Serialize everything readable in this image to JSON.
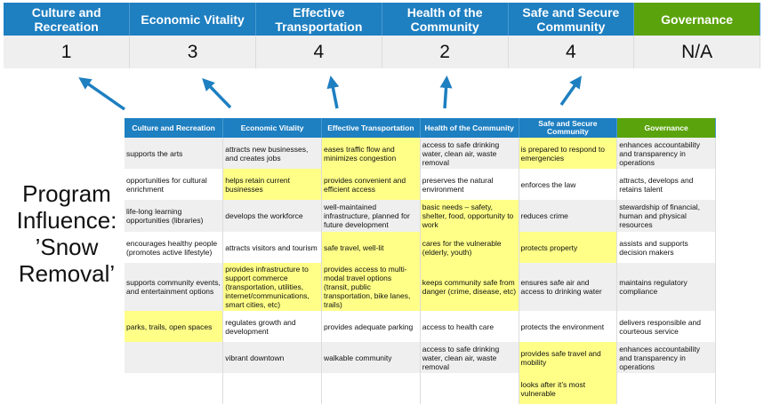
{
  "summary": {
    "headers": [
      "Culture and Recreation",
      "Economic Vitality",
      "Effective Transportation",
      "Health of the Community",
      "Safe and Secure Community",
      "Governance"
    ],
    "scores": [
      "1",
      "3",
      "4",
      "2",
      "4",
      "N/A"
    ]
  },
  "title": "Program Influence: ’Snow Removal’",
  "colors": {
    "header_blue": "#1e7fc1",
    "governance_green": "#5ba30c",
    "highlight": "#ffff88",
    "arrow": "#1e7fc1"
  },
  "detail": {
    "headers": [
      "Culture and Recreation",
      "Economic Vitality",
      "Effective Transportation",
      "Health of the Community",
      "Safe and Secure Community",
      "Governance"
    ],
    "rows": [
      {
        "cells": [
          "supports the arts",
          "attracts new businesses, and creates jobs",
          "eases traffic flow and minimizes congestion",
          "access to safe drinking water, clean air, waste removal",
          "is prepared to respond to emergencies",
          "enhances accountability and transparency in operations"
        ],
        "highlighted": [
          false,
          false,
          true,
          false,
          true,
          false
        ]
      },
      {
        "cells": [
          "opportunities for cultural enrichment",
          "helps retain current businesses",
          "provides convenient and efficient access",
          "preserves the natural environment",
          "enforces the law",
          "attracts, develops and retains talent"
        ],
        "highlighted": [
          false,
          true,
          true,
          false,
          false,
          false
        ]
      },
      {
        "cells": [
          "life-long learning opportunities (libraries)",
          "develops the workforce",
          "well-maintained infrastructure, planned for future development",
          "basic needs – safety, shelter, food, opportunity to work",
          "reduces crime",
          "stewardship of financial, human and physical resources"
        ],
        "highlighted": [
          false,
          false,
          false,
          true,
          false,
          false
        ]
      },
      {
        "cells": [
          "encourages healthy people (promotes active lifestyle)",
          "attracts visitors and tourism",
          "safe travel, well-lit",
          "cares for the vulnerable (elderly, youth)",
          "protects property",
          "assists and supports decision makers"
        ],
        "highlighted": [
          false,
          false,
          true,
          true,
          true,
          false
        ]
      },
      {
        "cells": [
          "supports community events, and entertainment options",
          "provides infrastructure to support commerce (transportation, utilities, internet/communications, smart cities, etc)",
          "provides access to multi-modal travel options (transit, public transportation, bike lanes, trails)",
          "keeps community safe from danger (crime, disease, etc)",
          "ensures safe air and access to drinking water",
          "maintains regulatory compliance"
        ],
        "highlighted": [
          false,
          true,
          true,
          true,
          false,
          false
        ]
      },
      {
        "cells": [
          "parks, trails, open spaces",
          "regulates growth and development",
          "provides adequate parking",
          "access to health care",
          "protects the environment",
          "delivers responsible and courteous service"
        ],
        "highlighted": [
          true,
          false,
          false,
          false,
          false,
          false
        ]
      },
      {
        "cells": [
          "",
          "vibrant downtown",
          "walkable community",
          "access to safe drinking water, clean air, waste removal",
          "provides safe travel and mobility",
          "enhances accountability and transparency in operations"
        ],
        "highlighted": [
          false,
          false,
          false,
          false,
          true,
          false
        ]
      },
      {
        "cells": [
          "",
          "",
          "",
          "",
          "looks after it’s most vulnerable",
          ""
        ],
        "highlighted": [
          false,
          false,
          false,
          false,
          true,
          false
        ]
      }
    ]
  }
}
